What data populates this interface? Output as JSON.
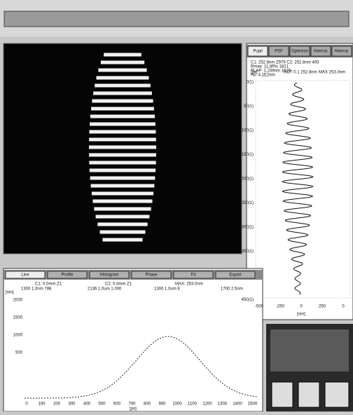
{
  "right_panel": {
    "tabs": [
      "Pupil",
      "PSF",
      "Optimize",
      "Aberrat.",
      "Aberrat."
    ],
    "info": [
      "C1: 252.8nm  Z979   C2: 252.8nm  493",
      "Rmax: 11.8Pts  1821",
      "PLAP: 1.239nm  1615",
      "Ab: 4.1E2nm"
    ],
    "axis_title": "[px]",
    "legend": [
      "ROT 0.1 252.8nm",
      "MAX 253.0nm"
    ],
    "y_labels": [
      "0(1)",
      "50(1)",
      "100(1)",
      "150(1)",
      "200(1)",
      "250(1)",
      "300(1)",
      "350(1)",
      "400(1)",
      "450(1)"
    ],
    "x_labels": [
      "-500",
      "-250",
      "0",
      "250",
      "0"
    ],
    "x_title": "[nm]"
  },
  "bottom_panel": {
    "tabs": [
      "Line",
      "Profile",
      "Histogram",
      "Phase",
      "Fit",
      "Export"
    ],
    "header": [
      "C1: 0.0mm  Z1",
      "C2: 0.0mm  Z1",
      "MAX: 253.0nm",
      "1300 1.0nm 788",
      "2136 1.0um 1.000",
      "1300 1.0um 8",
      "1700 2.5nm"
    ],
    "y_title": "[nm]",
    "y_labels": [
      "2000",
      "1500",
      "1000",
      "500"
    ],
    "x_labels": [
      "0",
      "100",
      "200",
      "300",
      "400",
      "500",
      "600",
      "700",
      "800",
      "900",
      "1000",
      "1100",
      "1200",
      "1300",
      "1400",
      "1500"
    ],
    "x_title": "[px]"
  }
}
